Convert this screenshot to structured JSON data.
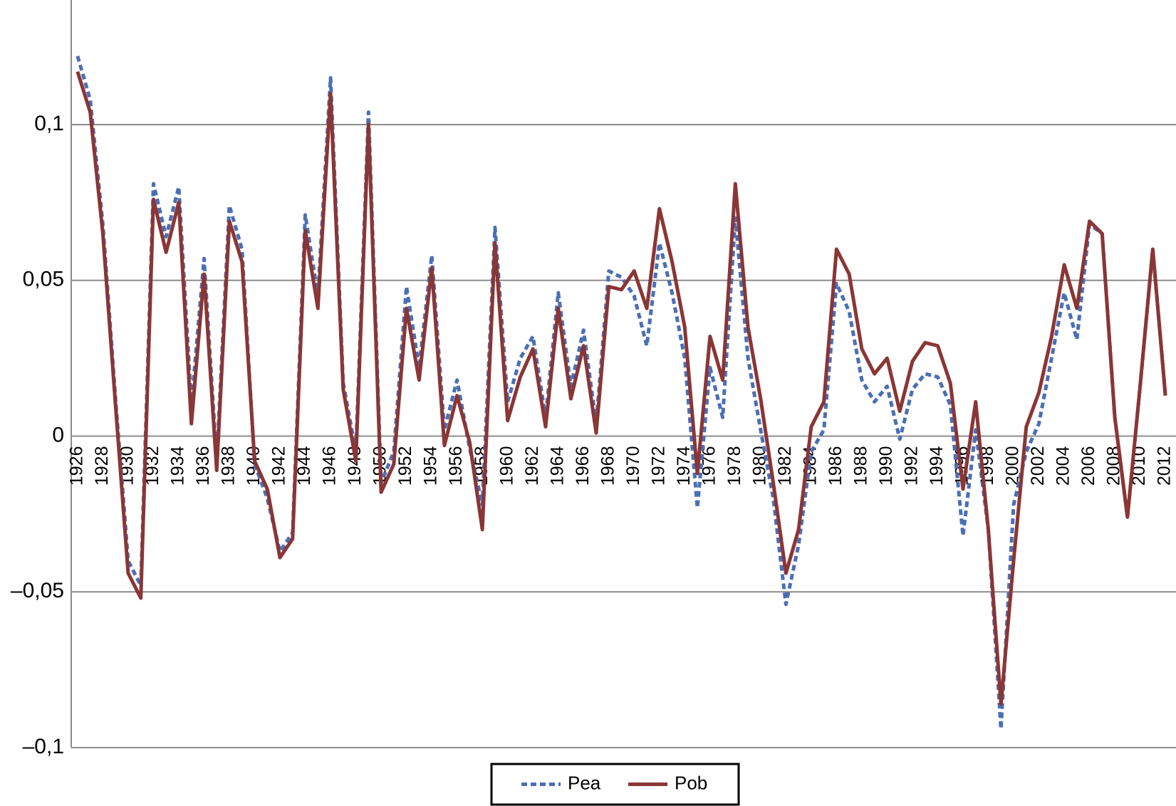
{
  "chart_data": {
    "type": "line",
    "categories": [
      1926,
      null,
      1928,
      null,
      1930,
      null,
      1932,
      null,
      1934,
      null,
      1936,
      null,
      1938,
      null,
      1940,
      null,
      1942,
      null,
      1944,
      null,
      1946,
      null,
      1948,
      null,
      1950,
      null,
      1952,
      null,
      1954,
      null,
      1956,
      null,
      1958,
      null,
      1960,
      null,
      1962,
      null,
      1964,
      null,
      1966,
      null,
      1968,
      null,
      1970,
      null,
      1972,
      null,
      1974,
      null,
      1976,
      null,
      1978,
      null,
      1980,
      null,
      1982,
      null,
      1984,
      null,
      1986,
      null,
      1988,
      null,
      1990,
      null,
      1992,
      null,
      1994,
      null,
      1996,
      null,
      1998,
      null,
      2000,
      null,
      2002,
      null,
      2004,
      null,
      2006,
      null,
      2008,
      null,
      2010,
      null,
      2012
    ],
    "series": [
      {
        "name": "Pea",
        "color": "#4a6fb5",
        "dash": "dashed",
        "values": [
          0.122,
          0.108,
          0.068,
          0.012,
          -0.04,
          -0.048,
          0.081,
          0.064,
          0.08,
          0.01,
          0.057,
          -0.008,
          0.074,
          0.06,
          -0.009,
          -0.02,
          -0.037,
          -0.031,
          0.071,
          0.045,
          0.115,
          0.017,
          -0.005,
          0.104,
          -0.015,
          -0.005,
          0.048,
          0.022,
          0.058,
          0.002,
          0.018,
          -0.004,
          -0.022,
          0.067,
          0.011,
          0.025,
          0.032,
          0.006,
          0.046,
          0.016,
          0.034,
          0.004,
          0.053,
          0.051,
          0.045,
          0.029,
          0.062,
          0.046,
          0.025,
          -0.023,
          0.022,
          0.006,
          0.07,
          0.025,
          0.002,
          -0.02,
          -0.054,
          -0.035,
          -0.005,
          0.002,
          0.049,
          0.04,
          0.018,
          0.011,
          0.016,
          -0.001,
          0.015,
          0.02,
          0.019,
          0.01,
          -0.032,
          0.002,
          -0.03,
          -0.094,
          -0.022,
          -0.005,
          0.004,
          0.025,
          0.046,
          0.031,
          0.068,
          0.065,
          0.006,
          -0.026,
          0.016,
          0.06,
          0.013
        ]
      },
      {
        "name": "Pob",
        "color": "#8b3535",
        "dash": "solid",
        "values": [
          0.117,
          0.104,
          0.065,
          0.01,
          -0.044,
          -0.052,
          0.076,
          0.059,
          0.075,
          0.004,
          0.052,
          -0.011,
          0.069,
          0.056,
          -0.008,
          -0.017,
          -0.039,
          -0.033,
          0.066,
          0.041,
          0.11,
          0.015,
          -0.008,
          0.1,
          -0.018,
          -0.009,
          0.041,
          0.018,
          0.054,
          -0.003,
          0.013,
          -0.002,
          -0.03,
          0.062,
          0.005,
          0.019,
          0.028,
          0.003,
          0.041,
          0.012,
          0.029,
          0.001,
          0.048,
          0.047,
          0.053,
          0.041,
          0.073,
          0.056,
          0.035,
          -0.012,
          0.032,
          0.018,
          0.081,
          0.035,
          0.012,
          -0.015,
          -0.044,
          -0.03,
          0.003,
          0.011,
          0.06,
          0.052,
          0.028,
          0.02,
          0.025,
          0.008,
          0.024,
          0.03,
          0.029,
          0.017,
          -0.017,
          0.011,
          -0.03,
          -0.086,
          -0.04,
          0.003,
          0.014,
          0.032,
          0.055,
          0.041,
          0.069,
          0.065,
          0.006,
          -0.026,
          0.016,
          0.06,
          0.013
        ]
      }
    ],
    "ylim": [
      -0.1,
      0.14
    ],
    "yticks": [
      {
        "value": -0.1,
        "label": "–0,1"
      },
      {
        "value": -0.05,
        "label": "–0,05"
      },
      0,
      {
        "value": 0.05,
        "label": "0,05"
      },
      {
        "value": 0.1,
        "label": "0,1"
      }
    ],
    "grid": true,
    "legend": "bottom"
  }
}
